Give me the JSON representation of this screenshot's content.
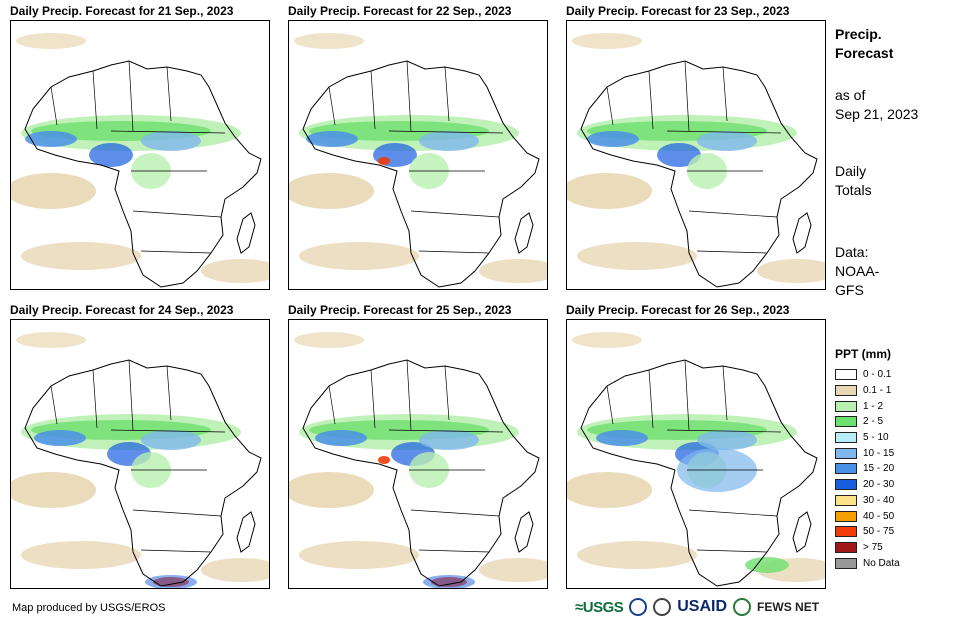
{
  "panels": [
    {
      "title": "Daily Precip. Forecast for 21 Sep., 2023"
    },
    {
      "title": "Daily Precip. Forecast for 22 Sep., 2023"
    },
    {
      "title": "Daily Precip. Forecast for 23 Sep., 2023"
    },
    {
      "title": "Daily Precip. Forecast for 24 Sep., 2023"
    },
    {
      "title": "Daily Precip. Forecast for 25 Sep., 2023"
    },
    {
      "title": "Daily Precip. Forecast for 26 Sep., 2023"
    }
  ],
  "side": {
    "title_line1": "Precip.",
    "title_line2": "Forecast",
    "asof_line1": "as of",
    "asof_line2": "Sep 21, 2023",
    "totals_line1": "Daily",
    "totals_line2": "Totals",
    "data_line1": "Data:",
    "data_line2": "NOAA-",
    "data_line3": "GFS"
  },
  "legend": {
    "title": "PPT (mm)",
    "items": [
      {
        "label": "0 - 0.1",
        "color": "#ffffff"
      },
      {
        "label": "0.1 - 1",
        "color": "#e8d7b4"
      },
      {
        "label": "1 - 2",
        "color": "#b8f0b0"
      },
      {
        "label": "2 - 5",
        "color": "#6ee06e"
      },
      {
        "label": "5 - 10",
        "color": "#b8ecf6"
      },
      {
        "label": "10 - 15",
        "color": "#7fb8ec"
      },
      {
        "label": "15 - 20",
        "color": "#4a90e8"
      },
      {
        "label": "20 - 30",
        "color": "#1a5ee0"
      },
      {
        "label": "30 - 40",
        "color": "#fce38a"
      },
      {
        "label": "40 - 50",
        "color": "#f5a000"
      },
      {
        "label": "50 - 75",
        "color": "#f03c0a"
      },
      {
        "label": "> 75",
        "color": "#a01818"
      },
      {
        "label": "No Data",
        "color": "#999999"
      }
    ]
  },
  "footer": {
    "credit": "Map produced by USGS/EROS"
  },
  "logos": {
    "usgs": "≈USGS",
    "usaid": "USAID",
    "fews": "FEWS NET"
  }
}
